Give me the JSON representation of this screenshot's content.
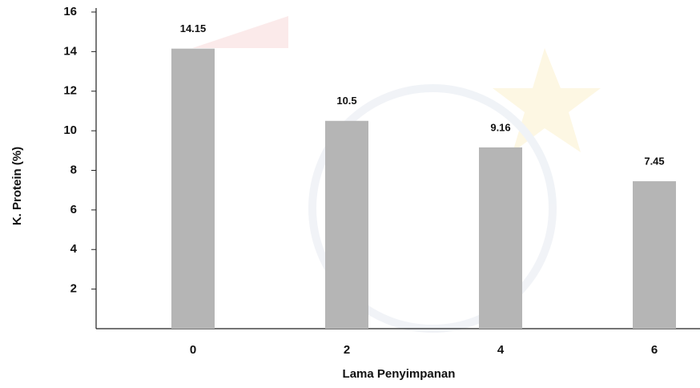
{
  "chart_data": {
    "type": "bar",
    "x_label": "Lama Penyimpanan",
    "y_label": "K. Protein (%)",
    "categories": [
      "0",
      "2",
      "4",
      "6"
    ],
    "values": [
      14.15,
      10.5,
      9.16,
      7.45
    ],
    "color": "#b5b5b5",
    "ylim": [
      0,
      16
    ],
    "yticks": [
      2,
      4,
      6,
      8,
      10,
      12,
      14,
      16
    ]
  }
}
